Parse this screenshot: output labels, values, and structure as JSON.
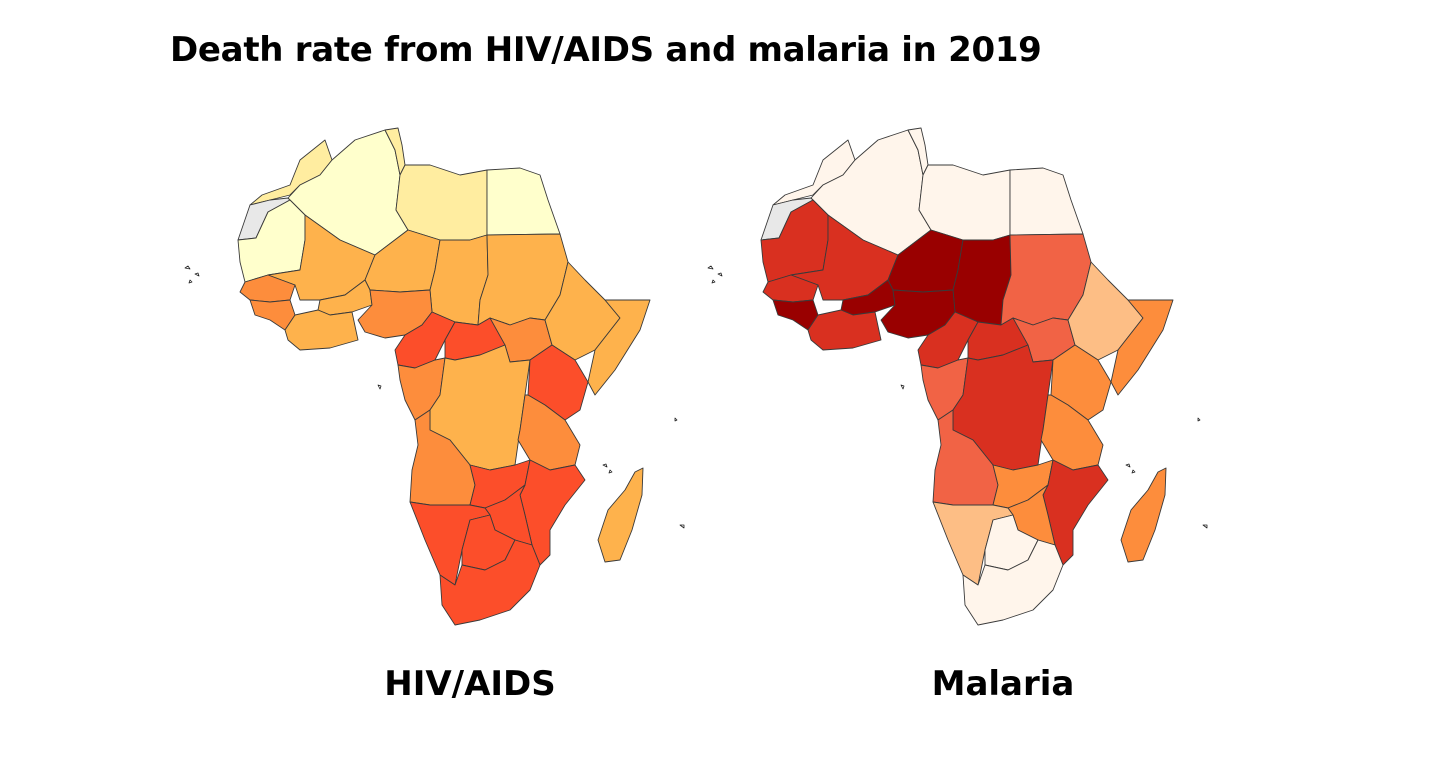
{
  "title": "Death rate from HIV/AIDS and malaria in 2019",
  "panels": [
    {
      "id": "hiv",
      "label": "HIV/AIDS",
      "colors": {
        "north_west": "#ffffcc",
        "north_mid": "#ffeda0",
        "sahel": "#feb24c",
        "coast": "#fd8d3c",
        "high": "#fc4e2a",
        "west_sahara": "#e8e8e8"
      }
    },
    {
      "id": "malaria",
      "label": "Malaria",
      "colors": {
        "north": "#fff5eb",
        "low": "#fdbe85",
        "mid": "#fd8d3c",
        "midhigh": "#f16345",
        "high": "#d93020",
        "veryhigh": "#990000",
        "west_sahara": "#e8e8e8"
      }
    }
  ]
}
